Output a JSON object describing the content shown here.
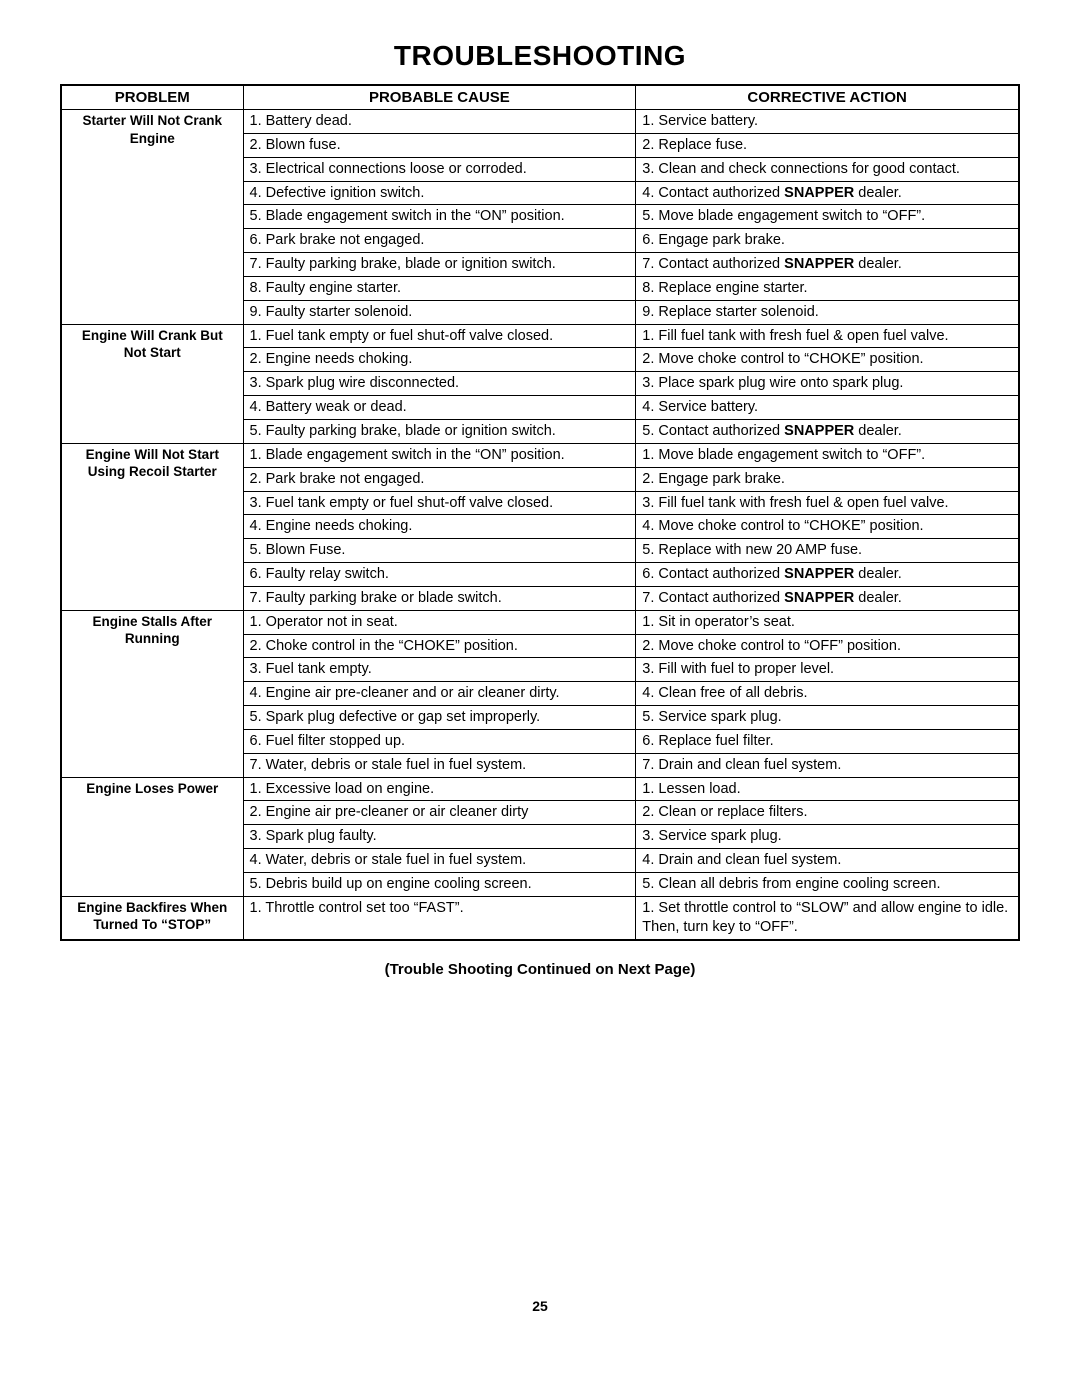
{
  "title": "TROUBLESHOOTING",
  "headers": {
    "problem": "PROBLEM",
    "cause": "PROBABLE CAUSE",
    "action": "CORRECTIVE ACTION"
  },
  "sections": [
    {
      "problem": [
        "Starter Will Not Crank",
        "Engine"
      ],
      "rows": [
        {
          "cause": "1. Battery dead.",
          "action": "1. Service battery."
        },
        {
          "cause": "2. Blown fuse.",
          "action": "2. Replace fuse."
        },
        {
          "cause": "3. Electrical connections loose or corroded.",
          "action": "3. Clean and check connections for good contact."
        },
        {
          "cause": "4. Defective ignition switch.",
          "action_pre": "4. Contact authorized ",
          "action_brand": "SNAPPER",
          "action_post": " dealer."
        },
        {
          "cause": "5. Blade engagement switch in the “ON” position.",
          "action": "5. Move blade engagement switch to “OFF”."
        },
        {
          "cause": "6. Park brake not engaged.",
          "action": "6. Engage park brake."
        },
        {
          "cause": "7. Faulty parking brake, blade or ignition switch.",
          "action_pre": "7. Contact authorized ",
          "action_brand": "SNAPPER",
          "action_post": " dealer."
        },
        {
          "cause": "8. Faulty engine starter.",
          "action": "8. Replace engine starter."
        },
        {
          "cause": "9. Faulty starter solenoid.",
          "action": "9. Replace starter solenoid."
        }
      ]
    },
    {
      "problem": [
        "Engine Will Crank But",
        "Not Start"
      ],
      "rows": [
        {
          "cause": "1. Fuel tank empty or fuel shut-off valve closed.",
          "action": "1. Fill fuel tank with fresh fuel & open fuel valve."
        },
        {
          "cause": "2. Engine needs choking.",
          "action": "2. Move choke control to “CHOKE” position."
        },
        {
          "cause": "3. Spark plug wire disconnected.",
          "action": "3. Place spark plug wire onto spark plug."
        },
        {
          "cause": "4. Battery weak or dead.",
          "action": "4. Service battery."
        },
        {
          "cause": "5. Faulty parking brake, blade or ignition switch.",
          "action_pre": "5. Contact authorized ",
          "action_brand": "SNAPPER",
          "action_post": " dealer."
        }
      ]
    },
    {
      "problem": [
        "Engine Will Not Start",
        "Using Recoil Starter"
      ],
      "rows": [
        {
          "cause": "1. Blade engagement switch in the “ON” position.",
          "action": "1. Move blade engagement switch to “OFF”."
        },
        {
          "cause": "2. Park brake not engaged.",
          "action": "2. Engage park brake."
        },
        {
          "cause": "3. Fuel tank empty or fuel shut-off valve closed.",
          "action": "3. Fill fuel tank with fresh fuel & open fuel valve."
        },
        {
          "cause": "4. Engine needs choking.",
          "action": "4. Move choke control to “CHOKE” position."
        },
        {
          "cause": "5. Blown Fuse.",
          "action": "5. Replace with new 20 AMP fuse."
        },
        {
          "cause": "6. Faulty relay switch.",
          "action_pre": "6. Contact authorized ",
          "action_brand": "SNAPPER",
          "action_post": " dealer."
        },
        {
          "cause": "7. Faulty parking brake or blade switch.",
          "action_pre": "7. Contact authorized ",
          "action_brand": "SNAPPER",
          "action_post": " dealer."
        }
      ]
    },
    {
      "problem": [
        "Engine Stalls After",
        "Running"
      ],
      "rows": [
        {
          "cause": "1. Operator not in seat.",
          "action": "1. Sit in operator’s seat."
        },
        {
          "cause": "2. Choke control in the “CHOKE” position.",
          "action": "2. Move choke control to “OFF” position."
        },
        {
          "cause": "3. Fuel tank empty.",
          "action": "3. Fill with fuel to proper level."
        },
        {
          "cause": "4. Engine air pre-cleaner and or air cleaner dirty.",
          "action": "4. Clean free of all debris."
        },
        {
          "cause": "5. Spark plug defective or gap set improperly.",
          "action": "5. Service spark plug."
        },
        {
          "cause": "6. Fuel filter stopped up.",
          "action": "6. Replace fuel filter."
        },
        {
          "cause": "7. Water, debris or stale fuel in fuel system.",
          "action": "7. Drain and clean fuel system."
        }
      ]
    },
    {
      "problem": [
        "Engine Loses Power"
      ],
      "rows": [
        {
          "cause": "1. Excessive load on engine.",
          "action": "1. Lessen load."
        },
        {
          "cause": "2. Engine air pre-cleaner or air cleaner dirty",
          "action": "2. Clean or replace filters."
        },
        {
          "cause": "3. Spark plug faulty.",
          "action": "3. Service spark plug."
        },
        {
          "cause": "4. Water, debris or stale fuel in fuel system.",
          "action": "4. Drain and clean fuel system."
        },
        {
          "cause": "5. Debris build up on engine cooling screen.",
          "action": "5. Clean all debris from engine cooling screen."
        }
      ]
    },
    {
      "problem": [
        "Engine Backfires When",
        "Turned To “STOP”"
      ],
      "rows": [
        {
          "cause": "1. Throttle control set too “FAST”.",
          "action": "1. Set throttle control to “SLOW” and allow engine to idle.  Then, turn key to “OFF”."
        }
      ]
    }
  ],
  "footerNote": "(Trouble Shooting Continued on Next Page)",
  "pageNumber": "25"
}
